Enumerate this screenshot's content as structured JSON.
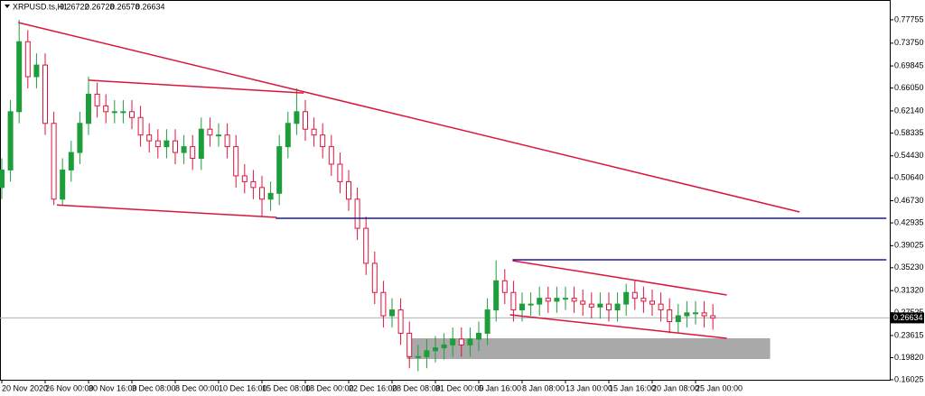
{
  "chart_data": {
    "type": "candlestick",
    "symbol": "XRPUSD.ts,H1",
    "ohlc": [
      0.26722,
      0.26728,
      0.26578,
      0.26634
    ],
    "last_price": 0.26634,
    "categories": [
      "20 Nov 2020",
      null,
      null,
      null,
      null,
      "26 Nov 00:00",
      null,
      null,
      null,
      null,
      "30 Nov 16:00",
      null,
      null,
      null,
      null,
      "3 Dec 08:00",
      null,
      null,
      null,
      null,
      "8 Dec 00:00",
      null,
      null,
      null,
      null,
      "10 Dec 16:00",
      null,
      null,
      null,
      null,
      "15 Dec 08:00",
      null,
      null,
      null,
      null,
      "18 Dec 00:00",
      null,
      null,
      null,
      null,
      "22 Dec 16:00",
      null,
      null,
      null,
      null,
      "28 Dec 08:00",
      null,
      null,
      null,
      null,
      "31 Dec 00:00",
      null,
      null,
      null,
      null,
      "5 Jan 16:00",
      null,
      null,
      null,
      null,
      "8 Jan 08:00",
      null,
      null,
      null,
      null,
      "13 Jan 00:00",
      null,
      null,
      null,
      null,
      "15 Jan 16:00",
      null,
      null,
      null,
      null,
      "20 Jan 08:00",
      null,
      null,
      null,
      null,
      "25 Jan 00:00",
      null,
      null
    ],
    "open": [
      0.49,
      0.52,
      0.62,
      0.74,
      0.68,
      0.7,
      0.6,
      0.47,
      0.52,
      0.55,
      0.6,
      0.65,
      0.63,
      0.62,
      0.62,
      0.62,
      0.61,
      0.58,
      0.57,
      0.56,
      0.57,
      0.55,
      0.56,
      0.54,
      0.59,
      0.58,
      0.58,
      0.56,
      0.51,
      0.5,
      0.49,
      0.47,
      0.48,
      0.56,
      0.6,
      0.62,
      0.59,
      0.58,
      0.56,
      0.53,
      0.5,
      0.47,
      0.42,
      0.36,
      0.31,
      0.27,
      0.28,
      0.24,
      0.2,
      0.2,
      0.21,
      0.215,
      0.22,
      0.23,
      0.22,
      0.23,
      0.24,
      0.28,
      0.33,
      0.31,
      0.28,
      0.29,
      0.29,
      0.3,
      0.295,
      0.3,
      0.3,
      0.295,
      0.29,
      0.285,
      0.29,
      0.28,
      0.29,
      0.31,
      0.3,
      0.295,
      0.29,
      0.28,
      0.26,
      0.27,
      0.275,
      0.275,
      0.27
    ],
    "high": [
      0.54,
      0.64,
      0.7775,
      0.76,
      0.72,
      0.72,
      0.62,
      0.54,
      0.57,
      0.62,
      0.68,
      0.67,
      0.65,
      0.64,
      0.64,
      0.64,
      0.63,
      0.6,
      0.59,
      0.59,
      0.59,
      0.58,
      0.58,
      0.61,
      0.61,
      0.6,
      0.6,
      0.58,
      0.53,
      0.52,
      0.51,
      0.5,
      0.58,
      0.62,
      0.66,
      0.64,
      0.61,
      0.6,
      0.58,
      0.55,
      0.52,
      0.49,
      0.44,
      0.38,
      0.33,
      0.3,
      0.3,
      0.26,
      0.22,
      0.23,
      0.235,
      0.24,
      0.25,
      0.25,
      0.25,
      0.26,
      0.3,
      0.365,
      0.35,
      0.33,
      0.31,
      0.31,
      0.32,
      0.32,
      0.32,
      0.32,
      0.32,
      0.315,
      0.31,
      0.31,
      0.31,
      0.31,
      0.325,
      0.33,
      0.32,
      0.315,
      0.31,
      0.3,
      0.29,
      0.295,
      0.295,
      0.295,
      0.29
    ],
    "low": [
      0.47,
      0.5,
      0.6,
      0.66,
      0.66,
      0.58,
      0.46,
      0.46,
      0.5,
      0.53,
      0.58,
      0.61,
      0.6,
      0.6,
      0.6,
      0.59,
      0.56,
      0.55,
      0.54,
      0.54,
      0.53,
      0.53,
      0.52,
      0.52,
      0.56,
      0.56,
      0.54,
      0.49,
      0.48,
      0.47,
      0.44,
      0.45,
      0.46,
      0.54,
      0.58,
      0.57,
      0.56,
      0.54,
      0.51,
      0.48,
      0.45,
      0.4,
      0.34,
      0.29,
      0.25,
      0.25,
      0.22,
      0.18,
      0.175,
      0.18,
      0.19,
      0.195,
      0.2,
      0.2,
      0.2,
      0.21,
      0.22,
      0.26,
      0.29,
      0.26,
      0.26,
      0.27,
      0.27,
      0.275,
      0.275,
      0.28,
      0.275,
      0.27,
      0.265,
      0.265,
      0.26,
      0.26,
      0.27,
      0.28,
      0.275,
      0.27,
      0.26,
      0.24,
      0.24,
      0.25,
      0.255,
      0.25,
      0.246
    ],
    "close": [
      0.52,
      0.62,
      0.74,
      0.68,
      0.7,
      0.6,
      0.47,
      0.52,
      0.55,
      0.6,
      0.65,
      0.63,
      0.62,
      0.62,
      0.62,
      0.61,
      0.58,
      0.57,
      0.56,
      0.57,
      0.55,
      0.56,
      0.54,
      0.59,
      0.58,
      0.58,
      0.56,
      0.51,
      0.5,
      0.49,
      0.47,
      0.48,
      0.56,
      0.6,
      0.62,
      0.59,
      0.58,
      0.56,
      0.53,
      0.5,
      0.47,
      0.42,
      0.36,
      0.31,
      0.27,
      0.28,
      0.24,
      0.2,
      0.2,
      0.21,
      0.215,
      0.22,
      0.23,
      0.22,
      0.23,
      0.24,
      0.28,
      0.33,
      0.31,
      0.28,
      0.29,
      0.29,
      0.3,
      0.295,
      0.3,
      0.3,
      0.295,
      0.29,
      0.285,
      0.29,
      0.28,
      0.29,
      0.31,
      0.3,
      0.295,
      0.29,
      0.28,
      0.26,
      0.27,
      0.275,
      0.275,
      0.27,
      0.266
    ],
    "up_color": "#1e9e3a",
    "down_color": "#dc143c",
    "ylim": [
      0.16025,
      0.8038
    ],
    "yticks": [
      0.77755,
      {
        "value": 0.7375,
        "label": "0.73750"
      },
      0.69845,
      {
        "value": 0.6605,
        "label": "0.66050"
      },
      {
        "value": 0.6214,
        "label": "0.62140"
      },
      0.58335,
      {
        "value": 0.5443,
        "label": "0.54430"
      },
      {
        "value": 0.5064,
        "label": "0.50640"
      },
      {
        "value": 0.4673,
        "label": "0.46730"
      },
      0.42935,
      0.39025,
      {
        "value": 0.3523,
        "label": "0.35230"
      },
      {
        "value": 0.3132,
        "label": "0.31320"
      },
      0.27525,
      0.23615,
      {
        "value": 0.1982,
        "label": "0.19820"
      },
      0.16025
    ],
    "lines": [
      {
        "color": "#dc143c",
        "x": [
          1.9,
          92
        ],
        "y": [
          0.7729,
          0.448
        ]
      },
      {
        "color": "#dc143c",
        "x": [
          10,
          34.8
        ],
        "y": [
          0.674,
          0.652
        ]
      },
      {
        "color": "#dc143c",
        "x": [
          6.35,
          31.7
        ],
        "y": [
          0.46,
          0.4387
        ]
      },
      {
        "color": "#dc143c",
        "x": [
          58.9,
          83.6
        ],
        "y": [
          0.3645,
          0.3057
        ]
      },
      {
        "color": "#dc143c",
        "x": [
          58.6,
          83.6
        ],
        "y": [
          0.2717,
          0.2314
        ]
      },
      {
        "color": "#1a1a9c",
        "x": [
          31.6,
          102
        ],
        "y": [
          0.4372,
          0.4372
        ]
      },
      {
        "color": "#1a1a9c",
        "x": [
          58.9,
          102
        ],
        "y": [
          0.366,
          0.366
        ]
      }
    ],
    "zones": [
      {
        "color": "#a9a9a9",
        "x": [
          46.7,
          88.6
        ],
        "y": [
          0.1958,
          0.2314
        ]
      }
    ]
  }
}
